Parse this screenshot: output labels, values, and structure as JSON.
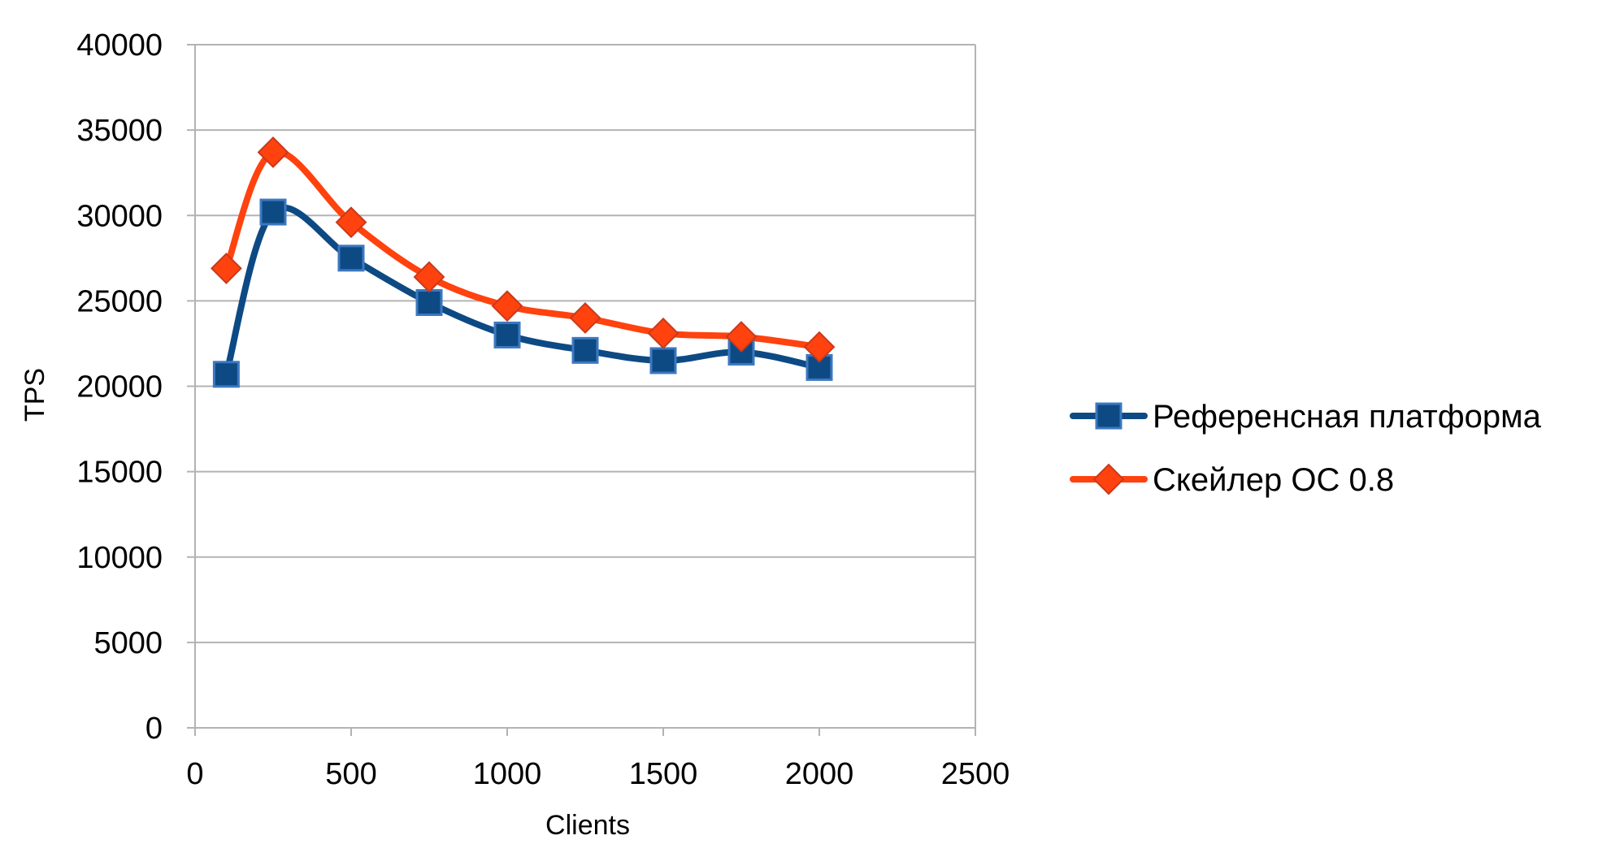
{
  "chart_data": {
    "type": "line",
    "title": "",
    "xlabel": "Clients",
    "ylabel": "TPS",
    "xlim": [
      0,
      2500
    ],
    "ylim": [
      0,
      40000
    ],
    "x_ticks": [
      "0",
      "500",
      "1000",
      "1500",
      "2000",
      "2500"
    ],
    "y_ticks": [
      "0",
      "5000",
      "10000",
      "15000",
      "20000",
      "25000",
      "30000",
      "35000",
      "40000"
    ],
    "grid": "horizontal",
    "smoothed": true,
    "legend_position": "right",
    "series": [
      {
        "name": "Референсная платформа",
        "color": "#0d4a84",
        "marker": "square",
        "x": [
          100,
          250,
          500,
          750,
          1000,
          1250,
          1500,
          1750,
          2000
        ],
        "y": [
          20700,
          30200,
          27500,
          24900,
          23000,
          22100,
          21500,
          22000,
          21100
        ]
      },
      {
        "name": "Скейлер ОС 0.8",
        "color": "#ff420e",
        "marker": "diamond",
        "x": [
          100,
          250,
          500,
          750,
          1000,
          1250,
          1500,
          1750,
          2000
        ],
        "y": [
          26900,
          33700,
          29600,
          26400,
          24700,
          24000,
          23100,
          22900,
          22300
        ]
      }
    ]
  }
}
